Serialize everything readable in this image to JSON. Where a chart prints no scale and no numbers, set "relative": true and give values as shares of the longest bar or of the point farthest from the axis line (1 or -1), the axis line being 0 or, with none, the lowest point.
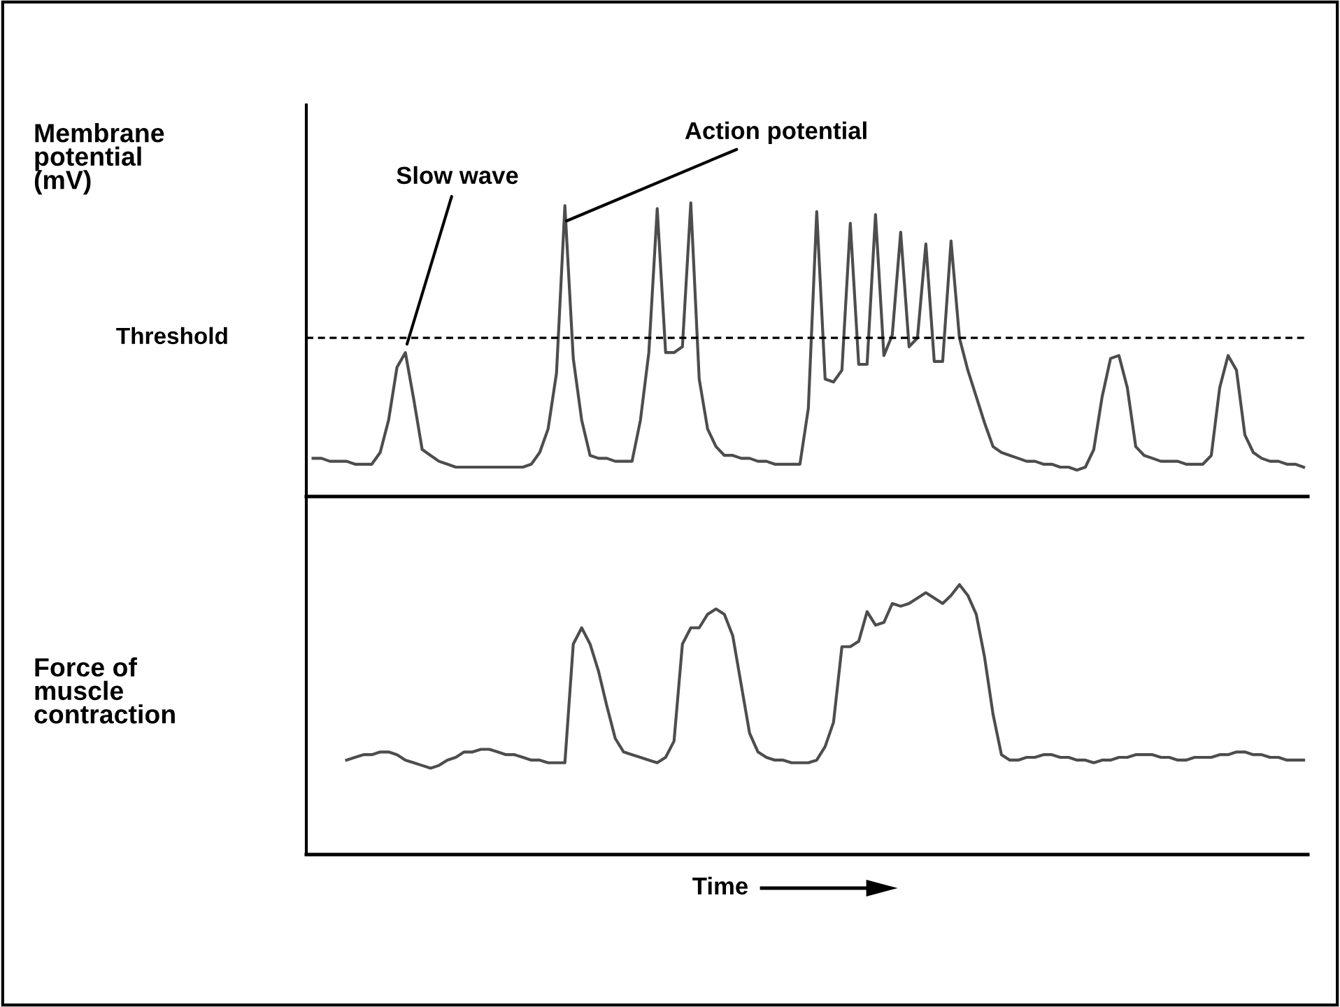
{
  "chart_data": [
    {
      "type": "line",
      "relative": true,
      "ylabel": "Membrane potential (mV)",
      "categories": [
        null,
        null,
        null,
        null,
        null,
        null,
        null,
        null,
        null,
        null,
        null,
        null,
        null,
        null,
        null,
        null,
        null,
        null,
        null,
        null,
        null,
        null,
        null,
        null,
        null,
        null,
        null,
        null,
        null,
        null,
        null,
        null,
        null,
        null,
        null,
        null,
        null,
        null,
        null,
        null,
        null,
        null,
        null,
        null,
        null,
        null,
        null,
        null,
        null,
        null,
        null,
        null,
        null,
        null,
        null,
        null,
        null,
        null,
        null,
        null,
        null,
        null,
        null,
        null,
        null,
        null,
        null,
        null,
        null,
        null,
        null,
        null,
        null,
        null,
        null,
        null,
        null,
        null,
        null,
        null,
        null,
        null,
        null,
        null,
        null,
        null,
        null,
        null,
        null,
        null,
        null,
        null,
        null,
        null,
        null,
        null,
        null,
        null,
        null,
        null,
        null,
        null,
        null,
        null,
        null,
        null,
        null,
        null,
        null,
        null,
        null,
        null,
        null,
        null,
        null,
        null,
        null,
        null,
        null
      ],
      "series": [
        {
          "color": "#4d4d4d",
          "values": [
            0.13,
            0.13,
            0.12,
            0.12,
            0.12,
            0.11,
            0.11,
            0.11,
            0.15,
            0.26,
            0.44,
            0.49,
            0.33,
            0.16,
            0.14,
            0.12,
            0.11,
            0.1,
            0.1,
            0.1,
            0.1,
            0.1,
            0.1,
            0.1,
            0.1,
            0.1,
            0.11,
            0.15,
            0.23,
            0.42,
            0.99,
            0.47,
            0.26,
            0.14,
            0.13,
            0.13,
            0.12,
            0.12,
            0.12,
            0.26,
            0.49,
            0.98,
            0.49,
            0.49,
            0.51,
            1.0,
            0.4,
            0.23,
            0.17,
            0.14,
            0.14,
            0.13,
            0.13,
            0.12,
            0.12,
            0.11,
            0.11,
            0.11,
            0.11,
            0.3,
            0.97,
            0.4,
            0.39,
            0.43,
            0.93,
            0.45,
            0.45,
            0.96,
            0.48,
            0.55,
            0.9,
            0.51,
            0.54,
            0.86,
            0.46,
            0.46,
            0.87,
            0.54,
            0.43,
            0.34,
            0.25,
            0.17,
            0.15,
            0.14,
            0.13,
            0.12,
            0.12,
            0.11,
            0.11,
            0.1,
            0.1,
            0.09,
            0.1,
            0.16,
            0.34,
            0.47,
            0.48,
            0.37,
            0.17,
            0.14,
            0.13,
            0.12,
            0.12,
            0.12,
            0.11,
            0.11,
            0.11,
            0.14,
            0.37,
            0.48,
            0.43,
            0.21,
            0.15,
            0.13,
            0.12,
            0.12,
            0.11,
            0.11,
            0.1
          ]
        }
      ],
      "ref_lines": [
        {
          "axis": "y",
          "value": 0.54,
          "label": "Threshold",
          "color": "#000000",
          "line_style": "dashed"
        }
      ],
      "annotations": [
        "Slow wave",
        "Action potential"
      ]
    },
    {
      "type": "line",
      "relative": true,
      "ylabel": "Force of muscle contraction",
      "xlabel": "Time",
      "categories": [
        null,
        null,
        null,
        null,
        null,
        null,
        null,
        null,
        null,
        null,
        null,
        null,
        null,
        null,
        null,
        null,
        null,
        null,
        null,
        null,
        null,
        null,
        null,
        null,
        null,
        null,
        null,
        null,
        null,
        null,
        null,
        null,
        null,
        null,
        null,
        null,
        null,
        null,
        null,
        null,
        null,
        null,
        null,
        null,
        null,
        null,
        null,
        null,
        null,
        null,
        null,
        null,
        null,
        null,
        null,
        null,
        null,
        null,
        null,
        null,
        null,
        null,
        null,
        null,
        null,
        null,
        null,
        null,
        null,
        null,
        null,
        null,
        null,
        null,
        null,
        null,
        null,
        null,
        null,
        null,
        null,
        null,
        null,
        null,
        null,
        null,
        null,
        null,
        null,
        null,
        null,
        null,
        null,
        null,
        null,
        null,
        null,
        null,
        null,
        null,
        null,
        null,
        null,
        null,
        null,
        null,
        null,
        null,
        null,
        null,
        null,
        null,
        null,
        null,
        null,
        null,
        null,
        null,
        null
      ],
      "series": [
        {
          "color": "#4d4d4d",
          "values": [
            null,
            null,
            null,
            null,
            0.35,
            0.36,
            0.37,
            0.37,
            0.38,
            0.38,
            0.37,
            0.35,
            0.34,
            0.33,
            0.32,
            0.33,
            0.35,
            0.36,
            0.38,
            0.38,
            0.39,
            0.39,
            0.38,
            0.37,
            0.37,
            0.36,
            0.35,
            0.35,
            0.34,
            0.34,
            0.34,
            0.78,
            0.84,
            0.78,
            0.68,
            0.55,
            0.43,
            0.38,
            0.37,
            0.36,
            0.35,
            0.34,
            0.36,
            0.42,
            0.78,
            0.84,
            0.84,
            0.89,
            0.91,
            0.89,
            0.81,
            0.63,
            0.45,
            0.38,
            0.36,
            0.35,
            0.35,
            0.34,
            0.34,
            0.34,
            0.35,
            0.4,
            0.49,
            0.77,
            0.77,
            0.79,
            0.9,
            0.85,
            0.86,
            0.93,
            0.92,
            0.93,
            0.95,
            0.97,
            0.95,
            0.93,
            0.96,
            1.0,
            0.96,
            0.89,
            0.73,
            0.52,
            0.37,
            0.35,
            0.35,
            0.36,
            0.36,
            0.37,
            0.37,
            0.36,
            0.36,
            0.35,
            0.35,
            0.34,
            0.35,
            0.35,
            0.36,
            0.36,
            0.37,
            0.37,
            0.37,
            0.36,
            0.36,
            0.35,
            0.35,
            0.36,
            0.36,
            0.36,
            0.37,
            0.37,
            0.38,
            0.38,
            0.37,
            0.37,
            0.36,
            0.36,
            0.35,
            0.35,
            0.35
          ]
        }
      ]
    }
  ]
}
